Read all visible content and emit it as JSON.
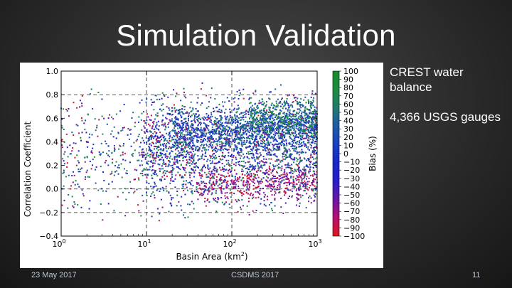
{
  "slide": {
    "title": "Simulation Validation",
    "notes": [
      "CREST water balance",
      "4,366 USGS gauges"
    ]
  },
  "footer": {
    "date": "23 May 2017",
    "event": "CSDMS 2017",
    "page": "11"
  },
  "chart_data": {
    "type": "scatter",
    "title": "",
    "xlabel": "Basin Area (km2)",
    "ylabel": "Correlation Coefficient",
    "x_scale": "log",
    "xlim": [
      1,
      1000
    ],
    "ylim": [
      -0.4,
      1.0
    ],
    "x_ticks": [
      {
        "base": "10",
        "exp": "0"
      },
      {
        "base": "10",
        "exp": "1"
      },
      {
        "base": "10",
        "exp": "2"
      },
      {
        "base": "10",
        "exp": "3"
      }
    ],
    "y_ticks": [
      "1.0",
      "0.8",
      "0.6",
      "0.4",
      "0.2",
      "0.0",
      "−0.2",
      "−0.4"
    ],
    "grid": "dashed",
    "vlines_x": [
      10,
      100
    ],
    "hlines_y": [
      0.8,
      0.0,
      -0.2
    ],
    "n_points": 4366,
    "colorbar": {
      "label": "Bias (%)",
      "range": [
        -100,
        100
      ],
      "ticks": [
        "100",
        "90",
        "80",
        "70",
        "60",
        "50",
        "40",
        "30",
        "20",
        "10",
        "0",
        "−10",
        "−20",
        "−30",
        "−40",
        "−50",
        "−60",
        "−70",
        "−80",
        "−90",
        "−100"
      ],
      "colormap": [
        "#e0141e",
        "#b4126e",
        "#6a16a8",
        "#2a1ec8",
        "#1828c8",
        "#1a40c0",
        "#1e5aa6",
        "#207a6e",
        "#1c8e3e",
        "#168a2e"
      ]
    },
    "clusters": [
      {
        "count": 900,
        "x_log_range": [
          1.3,
          3.0
        ],
        "y_range": [
          0.3,
          0.7
        ],
        "bias_range": [
          -20,
          60
        ]
      },
      {
        "count": 600,
        "x_log_range": [
          0.9,
          3.0
        ],
        "y_range": [
          0.1,
          0.65
        ],
        "bias_range": [
          -30,
          60
        ]
      },
      {
        "count": 500,
        "x_log_range": [
          1.6,
          3.0
        ],
        "y_range": [
          -0.12,
          0.22
        ],
        "bias_range": [
          -100,
          -40
        ]
      },
      {
        "count": 1366,
        "x_log_range": [
          1.0,
          3.0
        ],
        "y_range": [
          -0.25,
          0.9
        ],
        "bias_range": [
          -100,
          100
        ]
      },
      {
        "count": 500,
        "x_log_range": [
          0.0,
          1.6
        ],
        "y_range": [
          -0.3,
          0.9
        ],
        "bias_range": [
          -100,
          100
        ]
      },
      {
        "count": 500,
        "x_log_range": [
          2.2,
          3.0
        ],
        "y_range": [
          0.4,
          0.8
        ],
        "bias_range": [
          0,
          100
        ]
      }
    ]
  }
}
